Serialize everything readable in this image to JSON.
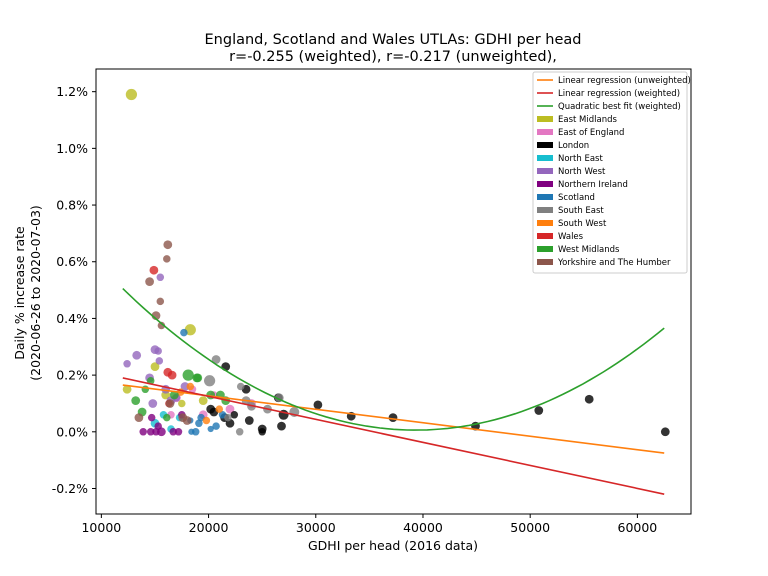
{
  "chart_data": {
    "type": "scatter",
    "title": "England, Scotland and Wales UTLAs: GDHI per head",
    "subtitle": "r=-0.255 (weighted), r=-0.217 (unweighted),",
    "xlabel": "GDHI per head (2016 data)",
    "ylabel": "Daily % increase rate",
    "ylabel2": "(2020-06-26 to 2020-07-03)",
    "xlim": [
      9500,
      65000
    ],
    "ylim": [
      -0.0029,
      0.0128
    ],
    "x_ticks": [
      10000,
      20000,
      30000,
      40000,
      50000,
      60000
    ],
    "x_tick_labels": [
      "10000",
      "20000",
      "30000",
      "40000",
      "50000",
      "60000"
    ],
    "y_ticks": [
      -0.002,
      0,
      0.002,
      0.004,
      0.006,
      0.008,
      0.01,
      0.012
    ],
    "y_tick_labels": [
      "-0.2%",
      "0.0%",
      "0.2%",
      "0.4%",
      "0.6%",
      "0.8%",
      "1.0%",
      "1.2%"
    ],
    "legend_position": "top-right",
    "lines": [
      {
        "name": "Linear regression (unweighted)",
        "color": "#ff7f0e",
        "kind": "linear",
        "x": [
          12000,
          62500
        ],
        "y": [
          0.00165,
          -0.00075
        ]
      },
      {
        "name": "Linear regression (weighted)",
        "color": "#d62728",
        "kind": "linear",
        "x": [
          12000,
          62500
        ],
        "y": [
          0.0019,
          -0.0022
        ]
      },
      {
        "name": "Quadratic best fit (weighted)",
        "color": "#2ca02c",
        "kind": "quadratic",
        "x_range": [
          12000,
          62500
        ],
        "coef": [
          6.69e-12,
          -5.26e-07,
          0.0104
        ]
      }
    ],
    "series": [
      {
        "name": "East Midlands",
        "color": "#bcbd22",
        "points": [
          [
            12800,
            0.0119,
            9
          ],
          [
            18300,
            0.0036,
            9
          ],
          [
            12400,
            0.0015,
            7
          ],
          [
            15000,
            0.0023,
            7
          ],
          [
            16000,
            0.0013,
            7
          ],
          [
            17500,
            0.001,
            6
          ],
          [
            19500,
            0.0011,
            7
          ]
        ]
      },
      {
        "name": "East of England",
        "color": "#e377c2",
        "points": [
          [
            17000,
            0.0012,
            7
          ],
          [
            18500,
            0.0015,
            6
          ],
          [
            19500,
            0.0006,
            7
          ],
          [
            20500,
            0.0013,
            6
          ],
          [
            22000,
            0.0008,
            7
          ],
          [
            24000,
            0.001,
            7
          ],
          [
            16500,
            0.0006,
            6
          ]
        ]
      },
      {
        "name": "London",
        "color": "#000000",
        "points": [
          [
            21600,
            0.0023,
            7
          ],
          [
            23500,
            0.0015,
            7
          ],
          [
            26500,
            0.0012,
            7
          ],
          [
            27000,
            0.0006,
            8
          ],
          [
            30200,
            0.00095,
            7
          ],
          [
            33300,
            0.00055,
            7
          ],
          [
            37200,
            0.0005,
            7
          ],
          [
            44900,
            0.0002,
            7
          ],
          [
            50800,
            0.00075,
            7
          ],
          [
            55500,
            0.00115,
            7
          ],
          [
            62600,
            0.0,
            7
          ],
          [
            20500,
            0.0007,
            7
          ],
          [
            21500,
            0.0005,
            7
          ],
          [
            22000,
            0.0003,
            7
          ],
          [
            25000,
            0.0001,
            7
          ],
          [
            26800,
            0.0002,
            7
          ],
          [
            23800,
            0.0004,
            7
          ],
          [
            20200,
            0.0008,
            7
          ],
          [
            22400,
            0.0006,
            6
          ],
          [
            25000,
            0.0,
            6
          ]
        ]
      },
      {
        "name": "North East",
        "color": "#17becf",
        "points": [
          [
            15000,
            0.0003,
            7
          ],
          [
            16500,
            0.0001,
            6
          ],
          [
            17300,
            0.0005,
            6
          ],
          [
            15800,
            0.0006,
            6
          ]
        ]
      },
      {
        "name": "North West",
        "color": "#9467bd",
        "points": [
          [
            12400,
            0.0024,
            6
          ],
          [
            13300,
            0.0027,
            7
          ],
          [
            14500,
            0.0019,
            7
          ],
          [
            15000,
            0.0029,
            7
          ],
          [
            15300,
            0.00285,
            6
          ],
          [
            15400,
            0.0025,
            6
          ],
          [
            15500,
            0.00545,
            6
          ],
          [
            16000,
            0.0015,
            7
          ],
          [
            16500,
            0.0011,
            7
          ],
          [
            17000,
            0.0012,
            6
          ],
          [
            17800,
            0.0016,
            7
          ],
          [
            14800,
            0.001,
            7
          ]
        ]
      },
      {
        "name": "Northern Ireland",
        "color": "#800080",
        "points": [
          [
            13900,
            0.0,
            6
          ],
          [
            14600,
            0.0,
            6
          ],
          [
            15100,
            0.0,
            6
          ],
          [
            15600,
            0.0,
            7
          ],
          [
            16700,
            0.0,
            6
          ],
          [
            17200,
            0.0,
            6
          ],
          [
            15300,
            0.0002,
            6
          ],
          [
            17500,
            0.0006,
            6
          ],
          [
            14700,
            0.0005,
            6
          ]
        ]
      },
      {
        "name": "Scotland",
        "color": "#1f77b4",
        "points": [
          [
            17700,
            0.0035,
            6
          ],
          [
            18800,
            0.0,
            6
          ],
          [
            19100,
            0.0003,
            6
          ],
          [
            20200,
            0.0001,
            5
          ],
          [
            20700,
            0.0002,
            6
          ],
          [
            18300,
            0.0004,
            5
          ],
          [
            18400,
            0.0,
            5
          ],
          [
            19300,
            0.0005,
            6
          ],
          [
            21300,
            0.0006,
            6
          ]
        ]
      },
      {
        "name": "South East",
        "color": "#808080",
        "points": [
          [
            20100,
            0.0018,
            9
          ],
          [
            20700,
            0.00255,
            7
          ],
          [
            23000,
            0.0016,
            6
          ],
          [
            24000,
            0.0009,
            7
          ],
          [
            26600,
            0.0012,
            7
          ],
          [
            28000,
            0.0007,
            8
          ],
          [
            22900,
            0.0,
            6
          ],
          [
            23500,
            0.0011,
            7
          ],
          [
            25500,
            0.0008,
            7
          ],
          [
            21800,
            0.0005,
            6
          ]
        ]
      },
      {
        "name": "South West",
        "color": "#ff7f0e",
        "points": [
          [
            18300,
            0.0016,
            6
          ],
          [
            19800,
            0.0004,
            6
          ],
          [
            21000,
            0.0008,
            6
          ],
          [
            17400,
            0.0014,
            6
          ]
        ]
      },
      {
        "name": "Wales",
        "color": "#d62728",
        "points": [
          [
            14900,
            0.0057,
            7
          ],
          [
            16200,
            0.0021,
            7
          ],
          [
            16600,
            0.002,
            7
          ],
          [
            16300,
            0.001,
            6
          ]
        ]
      },
      {
        "name": "West Midlands",
        "color": "#2ca02c",
        "points": [
          [
            13200,
            0.0011,
            7
          ],
          [
            13800,
            0.0007,
            7
          ],
          [
            14100,
            0.0015,
            6
          ],
          [
            14600,
            0.0018,
            6
          ],
          [
            16800,
            0.0013,
            7
          ],
          [
            18100,
            0.002,
            9
          ],
          [
            19000,
            0.0019,
            7
          ],
          [
            20200,
            0.0013,
            7
          ],
          [
            21600,
            0.0011,
            7
          ],
          [
            16100,
            0.0005,
            6
          ],
          [
            18900,
            0.0019,
            7
          ],
          [
            21100,
            0.0013,
            7
          ]
        ]
      },
      {
        "name": "Yorkshire and The Humber",
        "color": "#8c564b",
        "points": [
          [
            14500,
            0.0053,
            7
          ],
          [
            15100,
            0.0041,
            7
          ],
          [
            15500,
            0.0046,
            6
          ],
          [
            15600,
            0.00375,
            6
          ],
          [
            16200,
            0.0066,
            7
          ],
          [
            16100,
            0.0061,
            6
          ],
          [
            16400,
            0.001,
            7
          ],
          [
            13500,
            0.0005,
            7
          ],
          [
            17600,
            0.0005,
            7
          ],
          [
            18000,
            0.0004,
            7
          ]
        ]
      }
    ]
  }
}
